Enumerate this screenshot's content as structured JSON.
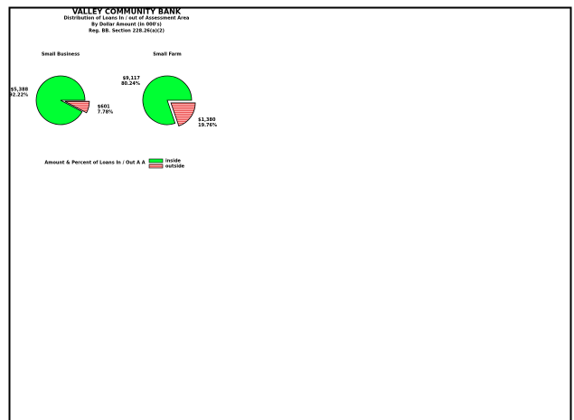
{
  "title": "VALLEY COMMUNITY BANK",
  "subtitles": [
    "Distribution of Loans In / out of Assessment Area",
    "By Dollar Amount (in 000's)",
    "Reg. BB. Section 228.26(a)(2)"
  ],
  "legend_title": "Amount & Percent of Loans In / Out A A",
  "legend": [
    {
      "name": "inside",
      "color": "#00ff33"
    },
    {
      "name": "outside",
      "color": "#ff8080"
    }
  ],
  "chart_data": [
    {
      "type": "pie",
      "title": "Small Business",
      "categories": [
        "inside",
        "outside"
      ],
      "values": [
        5388,
        601
      ],
      "value_labels": [
        "$5,388",
        "$601"
      ],
      "percents": [
        92.22,
        7.78
      ],
      "percent_labels": [
        "92.22%",
        "7.78%"
      ]
    },
    {
      "type": "pie",
      "title": "Small Farm",
      "categories": [
        "inside",
        "outside"
      ],
      "values": [
        9117,
        1380
      ],
      "value_labels": [
        "$9,117",
        "$1,380"
      ],
      "percents": [
        80.24,
        19.76
      ],
      "percent_labels": [
        "80.24%",
        "19.76%"
      ]
    }
  ]
}
